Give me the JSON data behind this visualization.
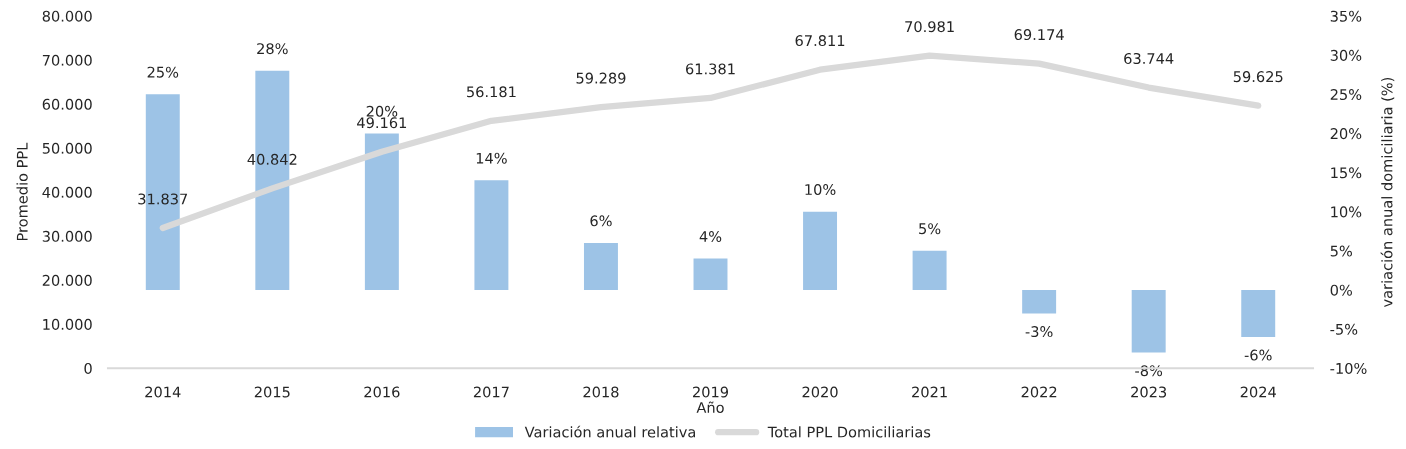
{
  "chart_data": {
    "type": "bar",
    "categories": [
      "2014",
      "2015",
      "2016",
      "2017",
      "2018",
      "2019",
      "2020",
      "2021",
      "2022",
      "2023",
      "2024"
    ],
    "xlabel": "Año",
    "ylabel": "Promedio PPL",
    "y2label": "variación anual domiciliaria (%)",
    "ylim": [
      0,
      80000
    ],
    "yticks": [
      0,
      {
        "value": 10000,
        "label": "10.000"
      },
      {
        "value": 20000,
        "label": "20.000"
      },
      {
        "value": 30000,
        "label": "30.000"
      },
      {
        "value": 40000,
        "label": "40.000"
      },
      {
        "value": 50000,
        "label": "50.000"
      },
      {
        "value": 60000,
        "label": "60.000"
      },
      {
        "value": 70000,
        "label": "70.000"
      },
      {
        "value": 80000,
        "label": "80.000"
      }
    ],
    "y2lim": [
      -10,
      35
    ],
    "y2ticks": [
      {
        "value": -10,
        "label": "-10%"
      },
      {
        "value": -5,
        "label": "-5%"
      },
      {
        "value": 0,
        "label": "0%"
      },
      {
        "value": 5,
        "label": "5%"
      },
      {
        "value": 10,
        "label": "10%"
      },
      {
        "value": 15,
        "label": "15%"
      },
      {
        "value": 20,
        "label": "20%"
      },
      {
        "value": 25,
        "label": "25%"
      },
      {
        "value": 30,
        "label": "30%"
      },
      {
        "value": 35,
        "label": "35%"
      }
    ],
    "series": [
      {
        "name": "Variación anual relativa",
        "axis": "y2",
        "color": "#9dc3e6",
        "values": [
          25,
          28,
          20,
          14,
          6,
          4,
          10,
          5,
          -3,
          -8,
          -6
        ],
        "value_labels": [
          "25%",
          "28%",
          "20%",
          "14%",
          "6%",
          "4%",
          "10%",
          "5%",
          "-3%",
          "-8%",
          "-6%"
        ]
      },
      {
        "name": "Total PPL Domiciliarias",
        "type": "line",
        "axis": "y",
        "color": "#d9d9d9",
        "values": [
          31837,
          40842,
          49161,
          56181,
          59289,
          61381,
          67811,
          70981,
          69174,
          63744,
          59625
        ],
        "value_labels": [
          "31.837",
          "40.842",
          "49.161",
          "56.181",
          "59.289",
          "61.381",
          "67.811",
          "70.981",
          "69.174",
          "63.744",
          "59.625"
        ]
      }
    ],
    "legend": "bottom",
    "grid": false
  }
}
